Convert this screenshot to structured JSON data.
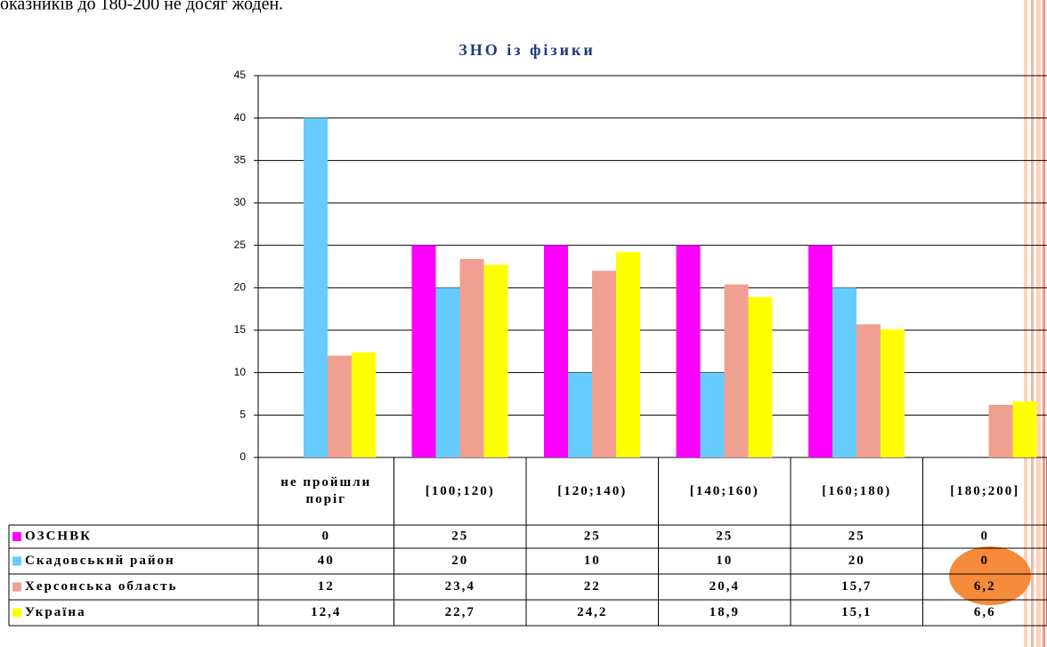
{
  "header_text": "оказників до 180-200 не досяг жоден.",
  "chart_data": {
    "type": "bar",
    "title": "ЗНО із фізики",
    "categories": [
      "не пройшли поріг",
      "[100;120)",
      "[120;140)",
      "[140;160)",
      "[160;180)",
      "[180;200]"
    ],
    "series": [
      {
        "name": "ОЗСНВК",
        "color": "#ff00ff",
        "values": [
          0,
          25,
          25,
          25,
          25,
          0
        ],
        "value_labels": [
          "0",
          "25",
          "25",
          "25",
          "25",
          "0"
        ]
      },
      {
        "name": "Скадовський район",
        "color": "#66ccff",
        "values": [
          40,
          20,
          10,
          10,
          20,
          0
        ],
        "value_labels": [
          "40",
          "20",
          "10",
          "10",
          "20",
          "0"
        ]
      },
      {
        "name": "Херсонська область",
        "color": "#f0a090",
        "values": [
          12,
          23.4,
          22,
          20.4,
          15.7,
          6.2
        ],
        "value_labels": [
          "12",
          "23,4",
          "22",
          "20,4",
          "15,7",
          "6,2"
        ]
      },
      {
        "name": "Україна",
        "color": "#ffff00",
        "values": [
          12.4,
          22.7,
          24.2,
          18.9,
          15.1,
          6.6
        ],
        "value_labels": [
          "12,4",
          "22,7",
          "24,2",
          "18,9",
          "15,1",
          "6,6"
        ]
      }
    ],
    "ylim": [
      0,
      45
    ],
    "yticks": [
      0,
      5,
      10,
      15,
      20,
      25,
      30,
      35,
      40,
      45
    ],
    "grid": true
  }
}
